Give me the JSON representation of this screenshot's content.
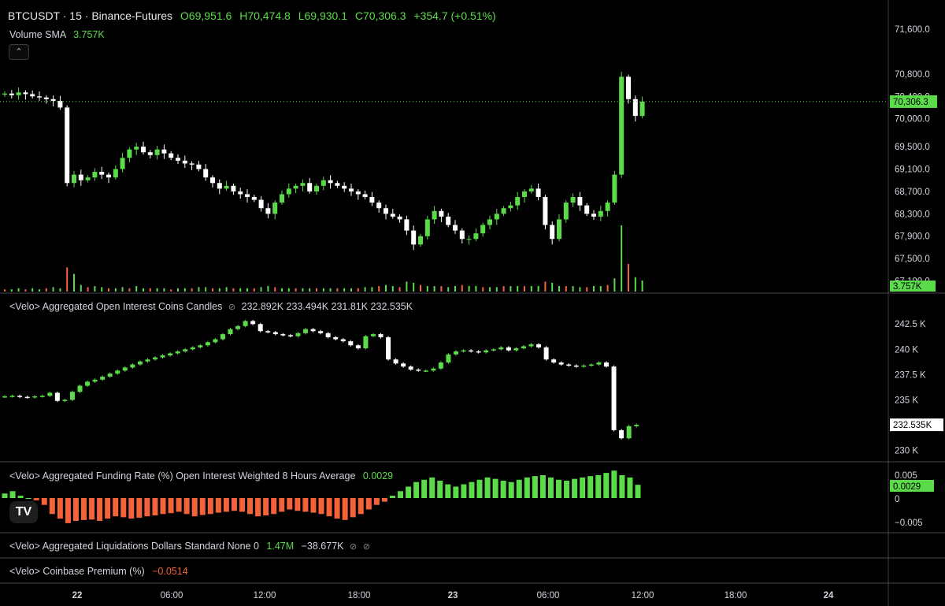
{
  "header": {
    "symbol": "BTCUSDT · 15 · Binance-Futures",
    "open": "O69,951.6",
    "high": "H70,474.8",
    "low": "L69,930.1",
    "close": "C70,306.3",
    "change": "+354.7 (+0.51%)",
    "volume_label": "Volume SMA",
    "volume_value": "3.757K",
    "collapse_icon": "chevron-up-icon"
  },
  "panes": {
    "oi": {
      "title": "<Velo> Aggregated Open Interest Coins Candles",
      "values": "232.892K  233.494K  231.81K  232.535K"
    },
    "funding": {
      "title": "<Velo> Aggregated Funding Rate (%) Open Interest Weighted 8 Hours Average",
      "value": "0.0029"
    },
    "liq": {
      "title": "<Velo> Aggregated Liquidations Dollars Standard None 0",
      "v1": "1.47M",
      "v2": "−38.677K"
    },
    "premium": {
      "title": "<Velo> Coinbase Premium (%)",
      "value": "−0.0514"
    }
  },
  "colors": {
    "up": "#5cdb4a",
    "down": "#ffffff",
    "neg_bar": "#f4623a",
    "bg": "#000000",
    "grid": "#2b2b2b"
  },
  "chart_data": [
    {
      "type": "candlestick",
      "title": "BTCUSDT · 15 · Binance-Futures",
      "y_ticks": [
        "71,600.0",
        "70,800.0",
        "70,400.0",
        "70,000.0",
        "69,500.0",
        "69,100.0",
        "68,700.0",
        "68,300.0",
        "67,900.0",
        "67,500.0",
        "67,100.0"
      ],
      "ylim": [
        67050,
        71700
      ],
      "last_price_label": "70,306.3",
      "volume_label": "3.757K",
      "x_ticks": [
        "22",
        "06:00",
        "12:00",
        "18:00",
        "23",
        "06:00",
        "12:00",
        "18:00",
        "24"
      ],
      "close_series": [
        70450,
        70420,
        70470,
        70440,
        70400,
        70380,
        70350,
        70320,
        70200,
        68850,
        69000,
        68900,
        68950,
        69050,
        69000,
        68950,
        69100,
        69300,
        69450,
        69500,
        69400,
        69350,
        69450,
        69380,
        69300,
        69250,
        69200,
        69180,
        69100,
        68950,
        68850,
        68750,
        68800,
        68700,
        68650,
        68600,
        68550,
        68400,
        68300,
        68500,
        68650,
        68750,
        68800,
        68850,
        68700,
        68800,
        68900,
        68850,
        68800,
        68750,
        68700,
        68650,
        68600,
        68500,
        68400,
        68300,
        68250,
        68200,
        68000,
        67750,
        67900,
        68200,
        68350,
        68250,
        68100,
        68000,
        67850,
        67850,
        67950,
        68100,
        68200,
        68300,
        68400,
        68450,
        68600,
        68700,
        68750,
        68600,
        68100,
        67850,
        68200,
        68500,
        68600,
        68450,
        68300,
        68250,
        68350,
        68500,
        69000,
        70750,
        70350,
        70050,
        70306
      ]
    },
    {
      "type": "candlestick",
      "title": "<Velo> Aggregated Open Interest Coins Candles",
      "y_ticks": [
        "242.5 K",
        "240 K",
        "237.5 K",
        "235 K",
        "230 K"
      ],
      "ylim": [
        229500,
        244000
      ],
      "last_value_label": "232.535K",
      "close_series": [
        235350,
        235400,
        235300,
        235250,
        235350,
        235400,
        235700,
        234900,
        235000,
        235800,
        236400,
        236800,
        237000,
        237300,
        237600,
        237900,
        238200,
        238500,
        238800,
        239000,
        239200,
        239400,
        239600,
        239800,
        240000,
        240200,
        240400,
        240700,
        241000,
        241500,
        242000,
        242300,
        242800,
        242500,
        241800,
        241700,
        241500,
        241400,
        241300,
        241600,
        242000,
        241800,
        241600,
        241200,
        241000,
        240800,
        240400,
        240100,
        241300,
        241500,
        241200,
        239000,
        238600,
        238300,
        238000,
        237900,
        237900,
        238100,
        238700,
        239500,
        239800,
        239900,
        239800,
        239700,
        239900,
        240000,
        240200,
        239900,
        240100,
        240300,
        240500,
        240200,
        239000,
        238700,
        238500,
        238400,
        238300,
        238400,
        238500,
        238700,
        238300,
        232000,
        231200,
        232400,
        232535
      ]
    },
    {
      "type": "bar",
      "title": "<Velo> Aggregated Funding Rate (%) Open Interest Weighted 8 Hours Average",
      "y_ticks": [
        "0.005",
        "0",
        "−0.005"
      ],
      "ylim": [
        -0.0065,
        0.0065
      ],
      "last_value_label": "0.0029",
      "values": [
        0.001,
        0.0015,
        0.0005,
        0,
        -0.0005,
        -0.0015,
        -0.0035,
        -0.0045,
        -0.0055,
        -0.005,
        -0.0048,
        -0.0047,
        -0.005,
        -0.0045,
        -0.004,
        -0.0042,
        -0.0045,
        -0.0043,
        -0.004,
        -0.0038,
        -0.0035,
        -0.0033,
        -0.003,
        -0.0035,
        -0.004,
        -0.0037,
        -0.0035,
        -0.0032,
        -0.003,
        -0.0028,
        -0.003,
        -0.0035,
        -0.004,
        -0.0038,
        -0.0035,
        -0.003,
        -0.0025,
        -0.0028,
        -0.003,
        -0.0032,
        -0.0035,
        -0.004,
        -0.0045,
        -0.0048,
        -0.0042,
        -0.0035,
        -0.0025,
        -0.0015,
        -0.0008,
        0.0005,
        0.0015,
        0.0025,
        0.0035,
        0.004,
        0.0045,
        0.0038,
        0.003,
        0.0025,
        0.003,
        0.0035,
        0.004,
        0.0045,
        0.0042,
        0.0038,
        0.0035,
        0.004,
        0.0045,
        0.0048,
        0.005,
        0.0045,
        0.004,
        0.0038,
        0.0042,
        0.0045,
        0.0048,
        0.005,
        0.0055,
        0.006,
        0.005,
        0.0045,
        0.0029
      ]
    },
    {
      "type": "bar",
      "title": "Volume",
      "values": [
        0.2,
        0.2,
        0.3,
        0.2,
        0.3,
        0.2,
        0.3,
        0.4,
        0.3,
        2.2,
        1.6,
        0.6,
        0.4,
        0.5,
        0.4,
        0.3,
        0.3,
        0.4,
        0.3,
        0.5,
        0.3,
        0.3,
        0.3,
        0.3,
        0.2,
        0.3,
        0.3,
        0.3,
        0.4,
        0.4,
        0.3,
        0.3,
        0.4,
        0.3,
        0.3,
        0.3,
        0.3,
        0.4,
        0.5,
        0.4,
        0.3,
        0.3,
        0.3,
        0.3,
        0.3,
        0.3,
        0.3,
        0.3,
        0.3,
        0.3,
        0.3,
        0.3,
        0.4,
        0.4,
        0.5,
        0.6,
        0.5,
        0.4,
        0.9,
        0.8,
        0.6,
        0.5,
        0.5,
        0.5,
        0.4,
        0.5,
        0.6,
        0.5,
        0.5,
        0.4,
        0.4,
        0.4,
        0.5,
        0.5,
        0.5,
        0.5,
        0.5,
        0.5,
        0.9,
        0.8,
        0.5,
        0.5,
        0.5,
        0.4,
        0.4,
        0.5,
        0.5,
        0.6,
        1.2,
        6.0,
        2.5,
        1.3,
        1.0
      ]
    }
  ]
}
